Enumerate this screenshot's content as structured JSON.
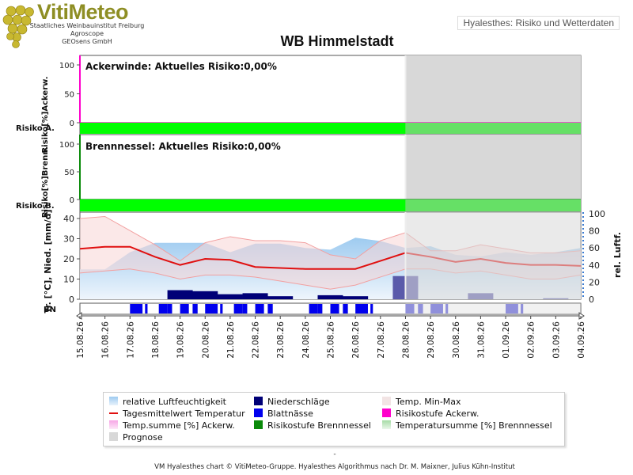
{
  "header": {
    "logo_title": "VitiMeteo",
    "logo_lines": [
      "Staatliches Weinbauinstitut Freiburg",
      "Agroscope",
      "GEOsens GmbH"
    ],
    "link_label": "Hyalesthes: Risiko und Wetterdaten"
  },
  "colors": {
    "risk_green": "#00ff00",
    "risk_green_prognosis": "#66e066",
    "temp_line": "#e01010",
    "precip": "#000077",
    "leaf_wetness": "#0000ee",
    "humidity": "#9ecbf0",
    "prognosis": "#d8d8d8",
    "magenta": "#ff00cc",
    "dark_green": "#0a8a0a"
  },
  "chart_data": [
    {
      "type": "line",
      "title": "Ackerwinde: Aktuelles Risiko:0,00%",
      "ylabel": "Risiko[%]Ackerw.",
      "side_label": "Risiko A.",
      "yticks": [
        0,
        50,
        100
      ],
      "ylim": [
        0,
        100
      ],
      "risk_level": "none",
      "series": [
        {
          "name": "Temp.summe [%] Ackerw.",
          "values": [
            0,
            0,
            0,
            0,
            0,
            0,
            0,
            0,
            0,
            0,
            0,
            0,
            0,
            0,
            0,
            0,
            0,
            0,
            0,
            0,
            0
          ]
        }
      ]
    },
    {
      "type": "line",
      "title": "Brennnessel: Aktuelles Risiko:0,00%",
      "ylabel": "Risiko[%]Brenn.",
      "side_label": "Risiko B.",
      "yticks": [
        0,
        50,
        100
      ],
      "ylim": [
        0,
        100
      ],
      "risk_level": "none",
      "series": [
        {
          "name": "Temperatursumme [%] Brennnessel",
          "values": [
            0,
            0,
            0,
            0,
            0,
            0,
            0,
            0,
            0,
            0,
            0,
            0,
            0,
            0,
            0,
            0,
            0,
            0,
            0,
            0,
            0
          ]
        }
      ]
    },
    {
      "type": "bar",
      "ylabel": "Tr. [°C], Nied. [mm/d]",
      "y2label": "rel. Luftf.",
      "yticks": [
        0,
        10,
        20,
        30,
        40
      ],
      "y2ticks": [
        0,
        20,
        40,
        60,
        80,
        100
      ],
      "ylim": [
        0,
        40
      ],
      "y2lim": [
        0,
        100
      ],
      "bn_label": "BN",
      "x": [
        "15.08.26",
        "16.08.26",
        "17.08.26",
        "18.08.26",
        "19.08.26",
        "20.08.26",
        "21.08.26",
        "22.08.26",
        "23.08.26",
        "24.08.26",
        "25.08.26",
        "26.08.26",
        "27.08.26",
        "28.08.26",
        "29.08.26",
        "30.08.26",
        "31.08.26",
        "01.09.26",
        "02.09.26",
        "03.09.26",
        "04.09.26"
      ],
      "prognosis_from": "28.08.26",
      "series": [
        {
          "name": "Tagesmittelwert Temperatur",
          "values": [
            25,
            26,
            26,
            21,
            17,
            20,
            19.5,
            16,
            15.5,
            15,
            15,
            15,
            19,
            23,
            21,
            18.5,
            20,
            18,
            17,
            17,
            16.5
          ]
        },
        {
          "name": "Temp. Min-Max",
          "min": [
            13,
            14,
            15,
            13,
            10,
            12,
            12,
            11,
            9,
            7,
            5,
            7,
            11,
            15,
            15,
            13,
            14,
            12,
            10,
            10,
            12
          ],
          "max": [
            40,
            41,
            34,
            27,
            19,
            28,
            31,
            29,
            29,
            28,
            22,
            20,
            29,
            33,
            24,
            24,
            27,
            25,
            23,
            23,
            24
          ]
        },
        {
          "name": "relative Luftfeuchtigkeit",
          "values": [
            35,
            35,
            55,
            66,
            66,
            66,
            55,
            65,
            65,
            60,
            58,
            72,
            68,
            60,
            62,
            52,
            50,
            55,
            52,
            55,
            60
          ]
        },
        {
          "name": "Niederschläge",
          "values": [
            0,
            0,
            0,
            0,
            4.5,
            4,
            2.5,
            3,
            1.5,
            0,
            2,
            1.5,
            0,
            11.5,
            0,
            0,
            3,
            0,
            0,
            0.5,
            0
          ]
        },
        {
          "name": "Blattnässe",
          "values": [
            0,
            0,
            1,
            1,
            1,
            1,
            1,
            1,
            0,
            1,
            1,
            1,
            0,
            1,
            1,
            0,
            0,
            1,
            0,
            0,
            0
          ]
        }
      ]
    }
  ],
  "legend": [
    {
      "label": "relative Luftfeuchtigkeit",
      "color": "#9ecbf0"
    },
    {
      "label": "Niederschläge",
      "color": "#000077"
    },
    {
      "label": "Temp. Min-Max",
      "color": "#f2e4e4"
    },
    {
      "label": "Tagesmittelwert Temperatur",
      "color": "#e01010"
    },
    {
      "label": "Blattnässe",
      "color": "#0000ee"
    },
    {
      "label": "Risikostufe Ackerw.",
      "color": "#ff00cc"
    },
    {
      "label": "Temp.summe [%] Ackerw.",
      "color": "#f7a6e6"
    },
    {
      "label": "Risikostufe Brennnessel",
      "color": "#0a8a0a"
    },
    {
      "label": "Temperatursumme [%] Brennnessel",
      "color": "#a6dca6"
    },
    {
      "label": "Prognose",
      "color": "#d8d8d8"
    }
  ],
  "footer_dash": "-",
  "footer": "VM Hyalesthes chart © VitiMeteo-Gruppe. Hyalesthes Algorithmus nach Dr. M. Maixner, Julius Kühn-Institut",
  "station_title": "WB Himmelstadt"
}
